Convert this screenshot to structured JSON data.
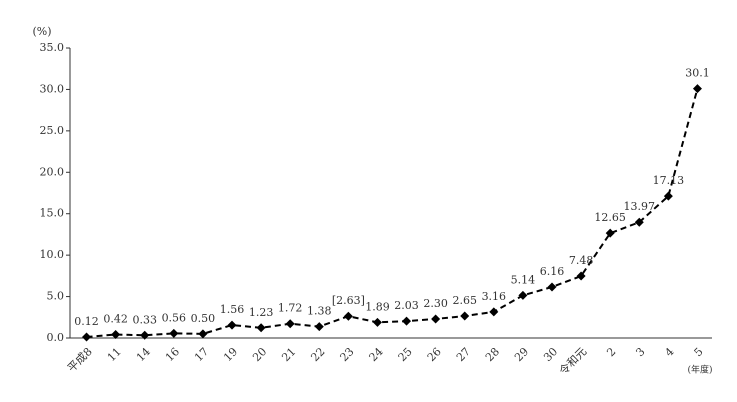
{
  "chart_data": {
    "type": "line",
    "y_label": "(%)",
    "x_label": "(年度)",
    "categories": [
      "平成8",
      "11",
      "14",
      "16",
      "17",
      "19",
      "20",
      "21",
      "22",
      "23",
      "24",
      "25",
      "26",
      "27",
      "28",
      "29",
      "30",
      "令和元",
      "2",
      "3",
      "4",
      "5"
    ],
    "values": [
      0.12,
      0.42,
      0.33,
      0.56,
      0.5,
      1.56,
      1.23,
      1.72,
      1.38,
      2.63,
      1.89,
      2.03,
      2.3,
      2.65,
      3.16,
      5.14,
      6.16,
      7.48,
      12.65,
      13.97,
      17.13,
      30.1
    ],
    "value_labels": [
      "0.12",
      "0.42",
      "0.33",
      "0.56",
      "0.50",
      "1.56",
      "1.23",
      "1.72",
      "1.38",
      "[2.63]",
      "1.89",
      "2.03",
      "2.30",
      "2.65",
      "3.16",
      "5.14",
      "6.16",
      "7.48",
      "12.65",
      "13.97",
      "17.13",
      "30.1"
    ],
    "color": "#000000",
    "ylim": [
      0,
      35
    ],
    "yticks": [
      {
        "value": 0,
        "label": "0.0"
      },
      {
        "value": 5,
        "label": "5.0"
      },
      {
        "value": 10,
        "label": "10.0"
      },
      {
        "value": 15,
        "label": "15.0"
      },
      {
        "value": 20,
        "label": "20.0"
      },
      {
        "value": 25,
        "label": "25.0"
      },
      {
        "value": 30,
        "label": "30.0"
      },
      {
        "value": 35,
        "label": "35.0"
      }
    ],
    "grid": false
  }
}
